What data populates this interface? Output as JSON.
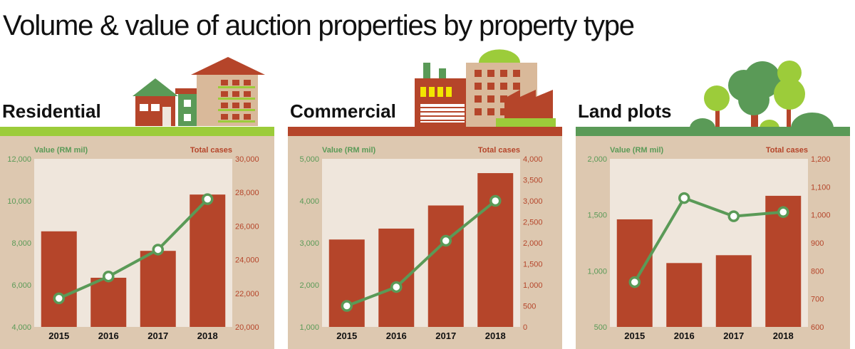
{
  "title": "Volume & value of auction properties by property type",
  "colors": {
    "bar": "#b5452a",
    "line": "#5a9a57",
    "panel_bg": "#ddc8b0",
    "plot_bg": "#efe6dc",
    "left_axis_text": "#5a9a57",
    "right_axis_text": "#b5452a",
    "title_text": "#111111"
  },
  "chart_data": [
    {
      "type": "bar",
      "panel_title": "Residential",
      "accent": "#9ccc3a",
      "illustration": "houses-icon",
      "categories": [
        "2015",
        "2016",
        "2017",
        "2018"
      ],
      "left_axis": {
        "label": "Value (RM mil)",
        "range": [
          4000,
          12000
        ],
        "ticks": [
          "4,000",
          "6,000",
          "8,000",
          "10,000",
          "12,000"
        ]
      },
      "right_axis": {
        "label": "Total cases",
        "range": [
          20000,
          30000
        ],
        "ticks": [
          "20,000",
          "22,000",
          "24,000",
          "26,000",
          "28,000",
          "30,000"
        ]
      },
      "bars": {
        "axis": "left",
        "values": [
          8550,
          6340,
          7620,
          10300
        ]
      },
      "line": {
        "axis": "right",
        "values": [
          21700,
          23000,
          24600,
          27600
        ]
      }
    },
    {
      "type": "bar",
      "panel_title": "Commercial",
      "accent": "#b5452a",
      "illustration": "factory-icon",
      "categories": [
        "2015",
        "2016",
        "2017",
        "2018"
      ],
      "left_axis": {
        "label": "Value (RM mil)",
        "range": [
          1000,
          5000
        ],
        "ticks": [
          "1,000",
          "2,000",
          "3,000",
          "4,000",
          "5,000"
        ]
      },
      "right_axis": {
        "label": "Total cases",
        "range": [
          0,
          4000
        ],
        "ticks": [
          "0",
          "500",
          "1,000",
          "1,500",
          "2,000",
          "2,500",
          "3,000",
          "3,500",
          "4,000"
        ]
      },
      "bars": {
        "axis": "left",
        "values": [
          3080,
          3340,
          3890,
          4660
        ]
      },
      "line": {
        "axis": "right",
        "values": [
          500,
          950,
          2050,
          3000
        ]
      }
    },
    {
      "type": "bar",
      "panel_title": "Land plots",
      "accent": "#5a9a57",
      "illustration": "trees-icon",
      "categories": [
        "2015",
        "2016",
        "2017",
        "2018"
      ],
      "left_axis": {
        "label": "Value (RM mil)",
        "range": [
          500,
          2000
        ],
        "ticks": [
          "500",
          "1,000",
          "1,500",
          "2,000"
        ]
      },
      "right_axis": {
        "label": "Total cases",
        "range": [
          600,
          1200
        ],
        "ticks": [
          "600",
          "700",
          "800",
          "900",
          "1,000",
          "1,100",
          "1,200"
        ]
      },
      "bars": {
        "axis": "left",
        "values": [
          1460,
          1070,
          1140,
          1670
        ]
      },
      "line": {
        "axis": "right",
        "values": [
          760,
          1060,
          995,
          1010
        ]
      }
    }
  ]
}
